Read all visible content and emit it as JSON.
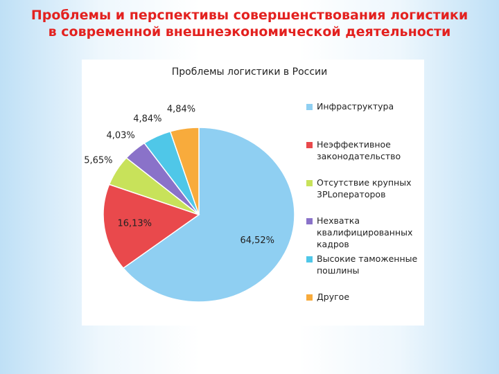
{
  "slide_title": "Проблемы и перспективы совершенствования логистики в современной внешнеэкономической деятельности",
  "chart_data": {
    "type": "pie",
    "title": "Проблемы логистики в России",
    "categories": [
      "Инфраструктура",
      "Неэффективное законодательство",
      "Отсутствие крупных 3PLоператоров",
      "Нехватка квалифицированных кадров",
      "Высокие таможенные пошлины",
      "Другое"
    ],
    "values": [
      64.52,
      16.13,
      5.65,
      4.03,
      4.84,
      4.84
    ],
    "value_labels": [
      "64,52%",
      "16,13%",
      "5,65%",
      "4,03%",
      "4,84%",
      "4,84%"
    ],
    "colors": [
      "#8fcff2",
      "#e9494c",
      "#c8e25a",
      "#8a72c9",
      "#4fc7e8",
      "#f8ab3c"
    ],
    "legend": "right"
  }
}
